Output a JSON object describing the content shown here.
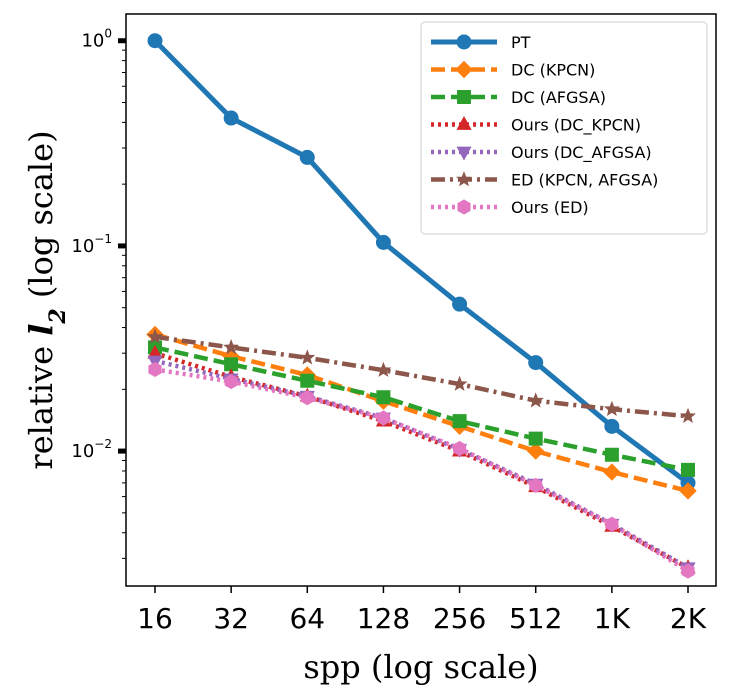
{
  "chart_data": {
    "type": "line",
    "xlabel": "spp (log scale)",
    "ylabel_prefix": "relative ",
    "ylabel_var": "l",
    "ylabel_sub": "2",
    "ylabel_suffix": " (log scale)",
    "x_scale": "log",
    "y_scale": "log",
    "categories": [
      "16",
      "32",
      "64",
      "128",
      "256",
      "512",
      "1K",
      "2K"
    ],
    "x": [
      16,
      32,
      64,
      128,
      256,
      512,
      1024,
      2048
    ],
    "ylim": [
      0.0022,
      1.35
    ],
    "y_ticks": [
      {
        "value": 1,
        "base": "10",
        "exp": "0"
      },
      {
        "value": 0.1,
        "base": "10",
        "exp": "−1"
      },
      {
        "value": 0.01,
        "base": "10",
        "exp": "−2"
      }
    ],
    "legend_position": "upper right",
    "series": [
      {
        "name": "PT",
        "color": "#1f77b4",
        "dash": "solid",
        "marker": "circle",
        "values": [
          1.0,
          0.42,
          0.27,
          0.104,
          0.052,
          0.027,
          0.0132,
          0.007
        ]
      },
      {
        "name": "DC (KPCN)",
        "color": "#ff7f0e",
        "dash": "dashed",
        "marker": "diamond",
        "values": [
          0.037,
          0.029,
          0.0235,
          0.0175,
          0.0132,
          0.01,
          0.0079,
          0.0064
        ]
      },
      {
        "name": "DC (AFGSA)",
        "color": "#2ca02c",
        "dash": "dashed",
        "marker": "square",
        "values": [
          0.032,
          0.0265,
          0.022,
          0.0183,
          0.014,
          0.0115,
          0.0096,
          0.0081
        ]
      },
      {
        "name": "Ours (DC_KPCN)",
        "color": "#d62728",
        "dash": "dotted",
        "marker": "triangle-up",
        "values": [
          0.03,
          0.023,
          0.0185,
          0.014,
          0.01,
          0.0067,
          0.0043,
          0.0027
        ]
      },
      {
        "name": "Ours (DC_AFGSA)",
        "color": "#9467bd",
        "dash": "dotted",
        "marker": "triangle-down",
        "values": [
          0.0275,
          0.0225,
          0.0185,
          0.0145,
          0.0102,
          0.0069,
          0.0044,
          0.0027
        ]
      },
      {
        "name": "ED (KPCN, AFGSA)",
        "color": "#8c564b",
        "dash": "dashdot",
        "marker": "star",
        "values": [
          0.036,
          0.032,
          0.0285,
          0.0248,
          0.0212,
          0.0176,
          0.016,
          0.0148
        ]
      },
      {
        "name": "Ours (ED)",
        "color": "#e377c2",
        "dash": "dotted",
        "marker": "hexagon",
        "values": [
          0.025,
          0.0218,
          0.0182,
          0.0145,
          0.0103,
          0.0068,
          0.0044,
          0.0026
        ]
      }
    ]
  }
}
